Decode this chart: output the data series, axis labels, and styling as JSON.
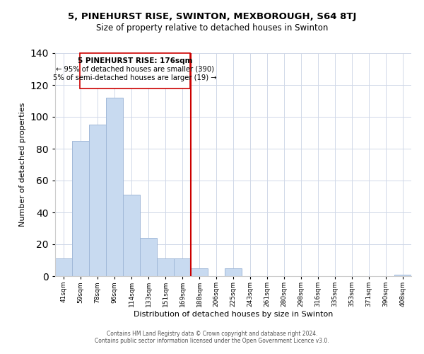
{
  "title1": "5, PINEHURST RISE, SWINTON, MEXBOROUGH, S64 8TJ",
  "title2": "Size of property relative to detached houses in Swinton",
  "xlabel": "Distribution of detached houses by size in Swinton",
  "ylabel": "Number of detached properties",
  "bar_labels": [
    "41sqm",
    "59sqm",
    "78sqm",
    "96sqm",
    "114sqm",
    "133sqm",
    "151sqm",
    "169sqm",
    "188sqm",
    "206sqm",
    "225sqm",
    "243sqm",
    "261sqm",
    "280sqm",
    "298sqm",
    "316sqm",
    "335sqm",
    "353sqm",
    "371sqm",
    "390sqm",
    "408sqm"
  ],
  "bar_values": [
    11,
    85,
    95,
    112,
    51,
    24,
    11,
    11,
    5,
    0,
    5,
    0,
    0,
    0,
    0,
    0,
    0,
    0,
    0,
    0,
    1
  ],
  "bar_color": "#c8daf0",
  "bar_edge_color": "#a0b8d8",
  "vline_x": 7.5,
  "vline_color": "#cc0000",
  "annotation_title": "5 PINEHURST RISE: 176sqm",
  "annotation_line1": "← 95% of detached houses are smaller (390)",
  "annotation_line2": "5% of semi-detached houses are larger (19) →",
  "annotation_box_edge": "#cc0000",
  "annotation_box_face": "#ffffff",
  "ylim": [
    0,
    140
  ],
  "yticks": [
    0,
    20,
    40,
    60,
    80,
    100,
    120,
    140
  ],
  "footer1": "Contains HM Land Registry data © Crown copyright and database right 2024.",
  "footer2": "Contains public sector information licensed under the Open Government Licence v3.0.",
  "background_color": "#ffffff",
  "grid_color": "#d0d8e8"
}
